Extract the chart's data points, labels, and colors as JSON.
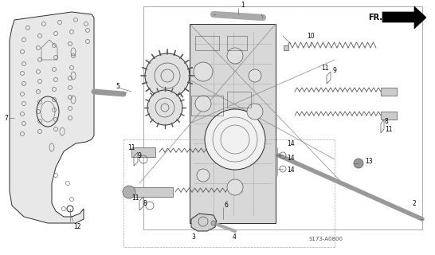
{
  "bg_color": "#ffffff",
  "line_color": "#2a2a2a",
  "part_code": "S173-A0800",
  "figsize": [
    5.46,
    3.2
  ],
  "dpi": 100,
  "lw": 0.7,
  "tlw": 0.4,
  "gray": "#888888",
  "dgray": "#555555",
  "lgray": "#cccccc",
  "plate_color": "#e8e8e8",
  "body_color": "#d8d8d8"
}
